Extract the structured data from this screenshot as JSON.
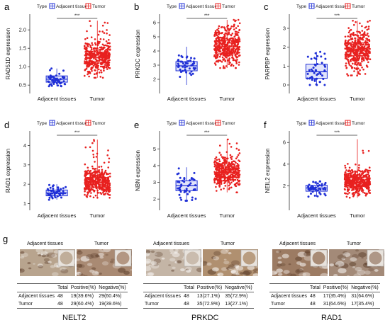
{
  "figure": {
    "legend": {
      "type_label": "Type",
      "adjacent": "Adjacent tissues",
      "tumor": "Tumor"
    },
    "significance": "***",
    "colors": {
      "adjacent": "#1f2fd6",
      "tumor": "#e8201f",
      "box_fill_adj": "#c9cdf5",
      "box_fill_tumor": "#f7caca"
    }
  },
  "chart_data": [
    {
      "panel": "a",
      "type": "box+jitter",
      "ylabel": "RAD51D expression",
      "categories": [
        "Adjacent tissues",
        "Tumor"
      ],
      "ylim": [
        0.35,
        2.35
      ],
      "yticks": [
        0.5,
        1.0,
        1.5,
        2.0
      ],
      "ytick_labels": [
        "0.5",
        "1.0",
        "1.5",
        "2.0"
      ],
      "boxes": [
        {
          "q1": 0.58,
          "median": 0.66,
          "q3": 0.75,
          "min": 0.47,
          "max": 0.95,
          "n": 48
        },
        {
          "q1": 1.1,
          "median": 1.25,
          "q3": 1.4,
          "min": 0.7,
          "max": 2.25,
          "n": 400
        }
      ]
    },
    {
      "panel": "b",
      "type": "box+jitter",
      "ylabel": "PRKDC expression",
      "categories": [
        "Adjacent tissues",
        "Tumor"
      ],
      "ylim": [
        1.2,
        6.4
      ],
      "yticks": [
        2,
        3,
        4,
        5,
        6
      ],
      "ytick_labels": [
        "2",
        "3",
        "4",
        "5",
        "6"
      ],
      "boxes": [
        {
          "q1": 2.6,
          "median": 2.95,
          "q3": 3.25,
          "min": 1.6,
          "max": 4.3,
          "n": 48
        },
        {
          "q1": 3.8,
          "median": 4.3,
          "q3": 4.75,
          "min": 2.8,
          "max": 6.2,
          "n": 400
        }
      ]
    },
    {
      "panel": "c",
      "type": "box+jitter",
      "ylabel": "PARPBP expression",
      "categories": [
        "Adjacent tissues",
        "Tumor"
      ],
      "ylim": [
        -0.3,
        3.6
      ],
      "yticks": [
        0,
        1,
        2,
        3
      ],
      "ytick_labels": [
        "0",
        "1",
        "2",
        "3"
      ],
      "boxes": [
        {
          "q1": 0.35,
          "median": 0.7,
          "q3": 1.1,
          "min": 0.0,
          "max": 1.75,
          "n": 48
        },
        {
          "q1": 1.55,
          "median": 1.9,
          "q3": 2.25,
          "min": 0.5,
          "max": 3.4,
          "n": 400
        }
      ]
    },
    {
      "panel": "d",
      "type": "box+jitter",
      "ylabel": "RAD1 expression",
      "categories": [
        "Adjacent tissues",
        "Tumor"
      ],
      "ylim": [
        0.8,
        4.6
      ],
      "yticks": [
        1,
        2,
        3,
        4
      ],
      "ytick_labels": [
        "1",
        "2",
        "3",
        "4"
      ],
      "boxes": [
        {
          "q1": 1.4,
          "median": 1.55,
          "q3": 1.7,
          "min": 1.2,
          "max": 2.0,
          "n": 48
        },
        {
          "q1": 1.85,
          "median": 2.1,
          "q3": 2.35,
          "min": 1.3,
          "max": 4.3,
          "n": 400
        }
      ]
    },
    {
      "panel": "e",
      "type": "box+jitter",
      "ylabel": "NBN expression",
      "categories": [
        "Adjacent tissues",
        "Tumor"
      ],
      "ylim": [
        1.5,
        5.9
      ],
      "yticks": [
        2,
        3,
        4,
        5
      ],
      "ytick_labels": [
        "2",
        "3",
        "4",
        "5"
      ],
      "boxes": [
        {
          "q1": 2.5,
          "median": 2.8,
          "q3": 3.1,
          "min": 1.9,
          "max": 3.9,
          "n": 48
        },
        {
          "q1": 3.3,
          "median": 3.6,
          "q3": 3.95,
          "min": 2.4,
          "max": 5.6,
          "n": 400
        }
      ]
    },
    {
      "panel": "f",
      "type": "box+jitter",
      "ylabel": "NEIL2 expression",
      "categories": [
        "Adjacent tissues",
        "Tumor"
      ],
      "ylim": [
        0.0,
        6.8
      ],
      "yticks": [
        2,
        4,
        6
      ],
      "ytick_labels": [
        "2",
        "4",
        "6"
      ],
      "boxes": [
        {
          "q1": 1.5,
          "median": 1.8,
          "q3": 2.05,
          "min": 1.0,
          "max": 2.4,
          "n": 48
        },
        {
          "q1": 1.95,
          "median": 2.35,
          "q3": 2.8,
          "min": 0.9,
          "max": 6.3,
          "n": 400
        }
      ]
    }
  ],
  "panel_g": {
    "label": "g",
    "tissue_labels": {
      "adjacent": "Adjacent tissues",
      "tumor": "Tumor"
    },
    "header": [
      "",
      "Total",
      "Positive(%)",
      "Negative(%)"
    ],
    "tables": [
      {
        "gene": "NELT2",
        "rows": [
          [
            "Adjacent tissues",
            "48",
            "19(39.6%)",
            "29(60.4%)"
          ],
          [
            "Tumor",
            "48",
            "29(60.4%)",
            "19(39.6%)"
          ]
        ]
      },
      {
        "gene": "PRKDC",
        "rows": [
          [
            "Adjacent tissues",
            "48",
            "13(27.1%)",
            "35(72.9%)"
          ],
          [
            "Tumor",
            "48",
            "35(72.9%)",
            "13(27.1%)"
          ]
        ]
      },
      {
        "gene": "RAD1",
        "rows": [
          [
            "Adjacent tissues",
            "48",
            "17(35.4%)",
            "31(64.6%)"
          ],
          [
            "Tumor",
            "48",
            "31(64.6%)",
            "17(35.4%)"
          ]
        ]
      }
    ],
    "tissue_colors": [
      "#b8a48e",
      "#a98a73",
      "#c4b5a6",
      "#b09070",
      "#9c7b63",
      "#a38a78"
    ]
  }
}
